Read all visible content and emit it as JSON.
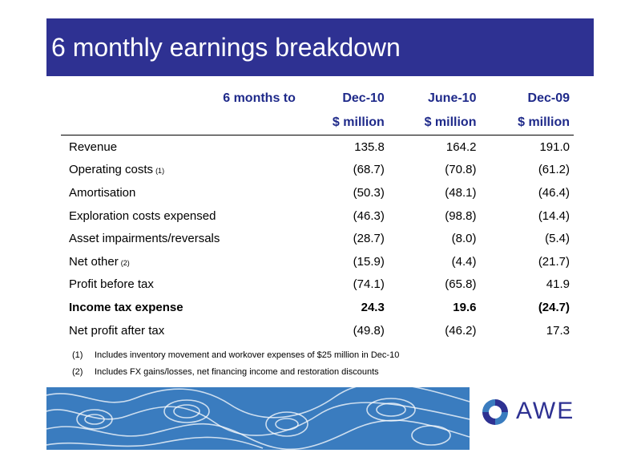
{
  "title": "6 monthly earnings breakdown",
  "table": {
    "header_label": "6 months to",
    "columns": [
      "Dec-10",
      "June-10",
      "Dec-09"
    ],
    "units": [
      "$ million",
      "$ million",
      "$ million"
    ],
    "rows": [
      {
        "label": "Revenue",
        "note": "",
        "values": [
          "135.8",
          "164.2",
          "191.0"
        ],
        "bold": false
      },
      {
        "label": "Operating costs",
        "note": "(1)",
        "values": [
          "(68.7)",
          "(70.8)",
          "(61.2)"
        ],
        "bold": false
      },
      {
        "label": "Amortisation",
        "note": "",
        "values": [
          "(50.3)",
          "(48.1)",
          "(46.4)"
        ],
        "bold": false
      },
      {
        "label": "Exploration costs expensed",
        "note": "",
        "values": [
          "(46.3)",
          "(98.8)",
          "(14.4)"
        ],
        "bold": false
      },
      {
        "label": "Asset impairments/reversals",
        "note": "",
        "values": [
          "(28.7)",
          "(8.0)",
          "(5.4)"
        ],
        "bold": false
      },
      {
        "label": "Net other",
        "note": "(2)",
        "values": [
          "(15.9)",
          "(4.4)",
          "(21.7)"
        ],
        "bold": false
      },
      {
        "label": "Profit before tax",
        "note": "",
        "values": [
          "(74.1)",
          "(65.8)",
          "41.9"
        ],
        "bold": false
      },
      {
        "label": "Income tax expense",
        "note": "",
        "values": [
          "24.3",
          "19.6",
          "(24.7)"
        ],
        "bold": true
      },
      {
        "label": "Net profit after tax",
        "note": "",
        "values": [
          "(49.8)",
          "(46.2)",
          "17.3"
        ],
        "bold": false
      }
    ]
  },
  "footnotes": [
    {
      "num": "(1)",
      "text": "Includes inventory movement and workover expenses of $25 million in Dec-10"
    },
    {
      "num": "(2)",
      "text": "Includes FX gains/losses, net financing income and restoration discounts"
    }
  ],
  "logo": {
    "text": "AWE"
  },
  "colors": {
    "title_bg": "#2e3192",
    "header_text": "#1f2a8a",
    "banner": "#3a7cbf"
  }
}
